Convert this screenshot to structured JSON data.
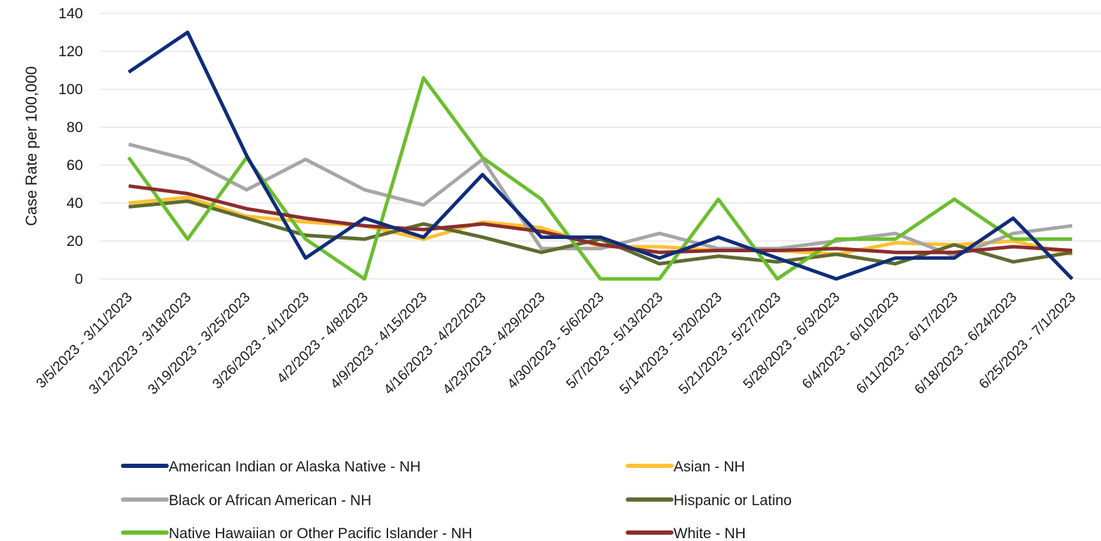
{
  "chart_data": {
    "type": "line",
    "ylabel": "Case Rate per 100,000",
    "xlabel": "",
    "ylim": [
      0,
      140
    ],
    "yticks": [
      0,
      20,
      40,
      60,
      80,
      100,
      120,
      140
    ],
    "grid": true,
    "legend_position": "bottom",
    "categories": [
      "3/5/2023 - 3/11/2023",
      "3/12/2023 - 3/18/2023",
      "3/19/2023 - 3/25/2023",
      "3/26/2023 - 4/1/2023",
      "4/2/2023 - 4/8/2023",
      "4/9/2023 - 4/15/2023",
      "4/16/2023 - 4/22/2023",
      "4/23/2023 - 4/29/2023",
      "4/30/2023 - 5/6/2023",
      "5/7/2023 - 5/13/2023",
      "5/14/2023 - 5/20/2023",
      "5/21/2023 - 5/27/2023",
      "5/28/2023 - 6/3/2023",
      "6/4/2023 - 6/10/2023",
      "6/11/2023 - 6/17/2023",
      "6/18/2023 - 6/24/2023",
      "6/25/2023 - 7/1/2023"
    ],
    "series": [
      {
        "name": "Asian - NH",
        "color": "#FFC133",
        "values": [
          40,
          43,
          33,
          30,
          28,
          21,
          30,
          27,
          17,
          17,
          15,
          15,
          13,
          19,
          18,
          20,
          13
        ]
      },
      {
        "name": "Black or African American - NH",
        "color": "#A6A6A6",
        "values": [
          71,
          63,
          47,
          63,
          47,
          39,
          63,
          16,
          16,
          24,
          16,
          16,
          20,
          24,
          12,
          24,
          28
        ]
      },
      {
        "name": "Hispanic or Latino",
        "color": "#5F6B2F",
        "values": [
          38,
          41,
          32,
          23,
          21,
          29,
          22,
          14,
          21,
          8,
          12,
          9,
          13,
          8,
          18,
          9,
          14
        ]
      },
      {
        "name": "Native Hawaiian or Other Pacific Islander - NH",
        "color": "#6BBE2E",
        "values": [
          64,
          21,
          64,
          21,
          0,
          106,
          64,
          42,
          0,
          0,
          42,
          0,
          21,
          21,
          42,
          21,
          21
        ]
      },
      {
        "name": "White - NH",
        "color": "#8B2D2D",
        "values": [
          49,
          45,
          37,
          32,
          28,
          26,
          29,
          25,
          18,
          14,
          15,
          15,
          16,
          14,
          14,
          17,
          15
        ]
      },
      {
        "name": "American Indian or Alaska Native - NH",
        "color": "#0F2C7A",
        "values": [
          109,
          130,
          65,
          11,
          32,
          22,
          55,
          22,
          22,
          11,
          22,
          11,
          0,
          11,
          11,
          32,
          0
        ]
      }
    ],
    "legend": [
      {
        "name": "American Indian or Alaska Native - NH",
        "color": "#0F2C7A"
      },
      {
        "name": "Asian - NH",
        "color": "#FFC133"
      },
      {
        "name": "Black or African American - NH",
        "color": "#A6A6A6"
      },
      {
        "name": "Hispanic or Latino",
        "color": "#5F6B2F"
      },
      {
        "name": "Native Hawaiian or Other Pacific Islander - NH",
        "color": "#6BBE2E"
      },
      {
        "name": "White - NH",
        "color": "#8B2D2D"
      }
    ]
  }
}
